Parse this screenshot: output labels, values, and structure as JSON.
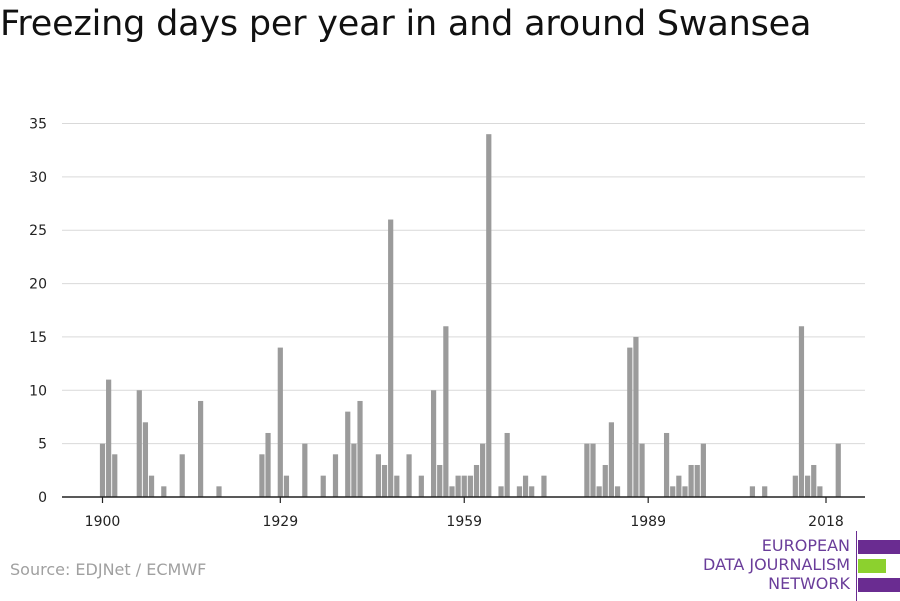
{
  "title": "Freezing days per year in and around Swansea",
  "source": "Source: EDJNet / ECMWF",
  "logo": {
    "lines": [
      "EUROPEAN",
      "DATA JOURNALISM",
      "NETWORK"
    ],
    "colors": {
      "purple": "#6a2c91",
      "green": "#8cd12e",
      "text": "#6a3d9a"
    }
  },
  "colors": {
    "bar": "#9b9b9b",
    "grid": "#d9d9d9",
    "axis": "#222222",
    "tick_text": "#222222"
  },
  "chart_data": {
    "type": "bar",
    "x_start": 1900,
    "x_end": 2018,
    "ylim": [
      0,
      35
    ],
    "yticks": [
      0,
      5,
      10,
      15,
      20,
      25,
      30,
      35
    ],
    "xticks": [
      1900,
      1929,
      1959,
      1989,
      2018
    ],
    "grid": true,
    "data": [
      [
        1900,
        5
      ],
      [
        1901,
        11
      ],
      [
        1902,
        4
      ],
      [
        1903,
        0
      ],
      [
        1904,
        0
      ],
      [
        1905,
        0
      ],
      [
        1906,
        10
      ],
      [
        1907,
        7
      ],
      [
        1908,
        2
      ],
      [
        1909,
        0
      ],
      [
        1910,
        1
      ],
      [
        1911,
        0
      ],
      [
        1912,
        0
      ],
      [
        1913,
        4
      ],
      [
        1914,
        0
      ],
      [
        1915,
        0
      ],
      [
        1916,
        9
      ],
      [
        1917,
        0
      ],
      [
        1918,
        0
      ],
      [
        1919,
        1
      ],
      [
        1920,
        0
      ],
      [
        1921,
        0
      ],
      [
        1922,
        0
      ],
      [
        1923,
        0
      ],
      [
        1924,
        0
      ],
      [
        1925,
        0
      ],
      [
        1926,
        4
      ],
      [
        1927,
        6
      ],
      [
        1928,
        0
      ],
      [
        1929,
        14
      ],
      [
        1930,
        2
      ],
      [
        1931,
        0
      ],
      [
        1932,
        0
      ],
      [
        1933,
        5
      ],
      [
        1934,
        0
      ],
      [
        1935,
        0
      ],
      [
        1936,
        2
      ],
      [
        1937,
        0
      ],
      [
        1938,
        4
      ],
      [
        1939,
        0
      ],
      [
        1940,
        8
      ],
      [
        1941,
        5
      ],
      [
        1942,
        9
      ],
      [
        1943,
        0
      ],
      [
        1944,
        0
      ],
      [
        1945,
        4
      ],
      [
        1946,
        3
      ],
      [
        1947,
        26
      ],
      [
        1948,
        2
      ],
      [
        1949,
        0
      ],
      [
        1950,
        4
      ],
      [
        1951,
        0
      ],
      [
        1952,
        2
      ],
      [
        1953,
        0
      ],
      [
        1954,
        10
      ],
      [
        1955,
        3
      ],
      [
        1956,
        16
      ],
      [
        1957,
        1
      ],
      [
        1958,
        2
      ],
      [
        1959,
        2
      ],
      [
        1960,
        2
      ],
      [
        1961,
        3
      ],
      [
        1962,
        5
      ],
      [
        1963,
        34
      ],
      [
        1964,
        0
      ],
      [
        1965,
        1
      ],
      [
        1966,
        6
      ],
      [
        1967,
        0
      ],
      [
        1968,
        1
      ],
      [
        1969,
        2
      ],
      [
        1970,
        1
      ],
      [
        1971,
        0
      ],
      [
        1972,
        2
      ],
      [
        1973,
        0
      ],
      [
        1974,
        0
      ],
      [
        1975,
        0
      ],
      [
        1976,
        0
      ],
      [
        1977,
        0
      ],
      [
        1978,
        0
      ],
      [
        1979,
        5
      ],
      [
        1980,
        5
      ],
      [
        1981,
        1
      ],
      [
        1982,
        3
      ],
      [
        1983,
        7
      ],
      [
        1984,
        1
      ],
      [
        1985,
        0
      ],
      [
        1986,
        14
      ],
      [
        1987,
        15
      ],
      [
        1988,
        5
      ],
      [
        1989,
        0
      ],
      [
        1990,
        0
      ],
      [
        1991,
        0
      ],
      [
        1992,
        6
      ],
      [
        1993,
        1
      ],
      [
        1994,
        2
      ],
      [
        1995,
        1
      ],
      [
        1996,
        3
      ],
      [
        1997,
        3
      ],
      [
        1998,
        5
      ],
      [
        1999,
        0
      ],
      [
        2000,
        0
      ],
      [
        2001,
        0
      ],
      [
        2002,
        0
      ],
      [
        2003,
        0
      ],
      [
        2004,
        0
      ],
      [
        2005,
        0
      ],
      [
        2006,
        1
      ],
      [
        2007,
        0
      ],
      [
        2008,
        1
      ],
      [
        2009,
        0
      ],
      [
        2010,
        0
      ],
      [
        2011,
        0
      ],
      [
        2012,
        0
      ],
      [
        2013,
        2
      ],
      [
        2014,
        16
      ],
      [
        2015,
        2
      ],
      [
        2016,
        3
      ],
      [
        2017,
        1
      ],
      [
        2018,
        0
      ],
      [
        2019,
        0
      ],
      [
        2020,
        5
      ]
    ]
  }
}
